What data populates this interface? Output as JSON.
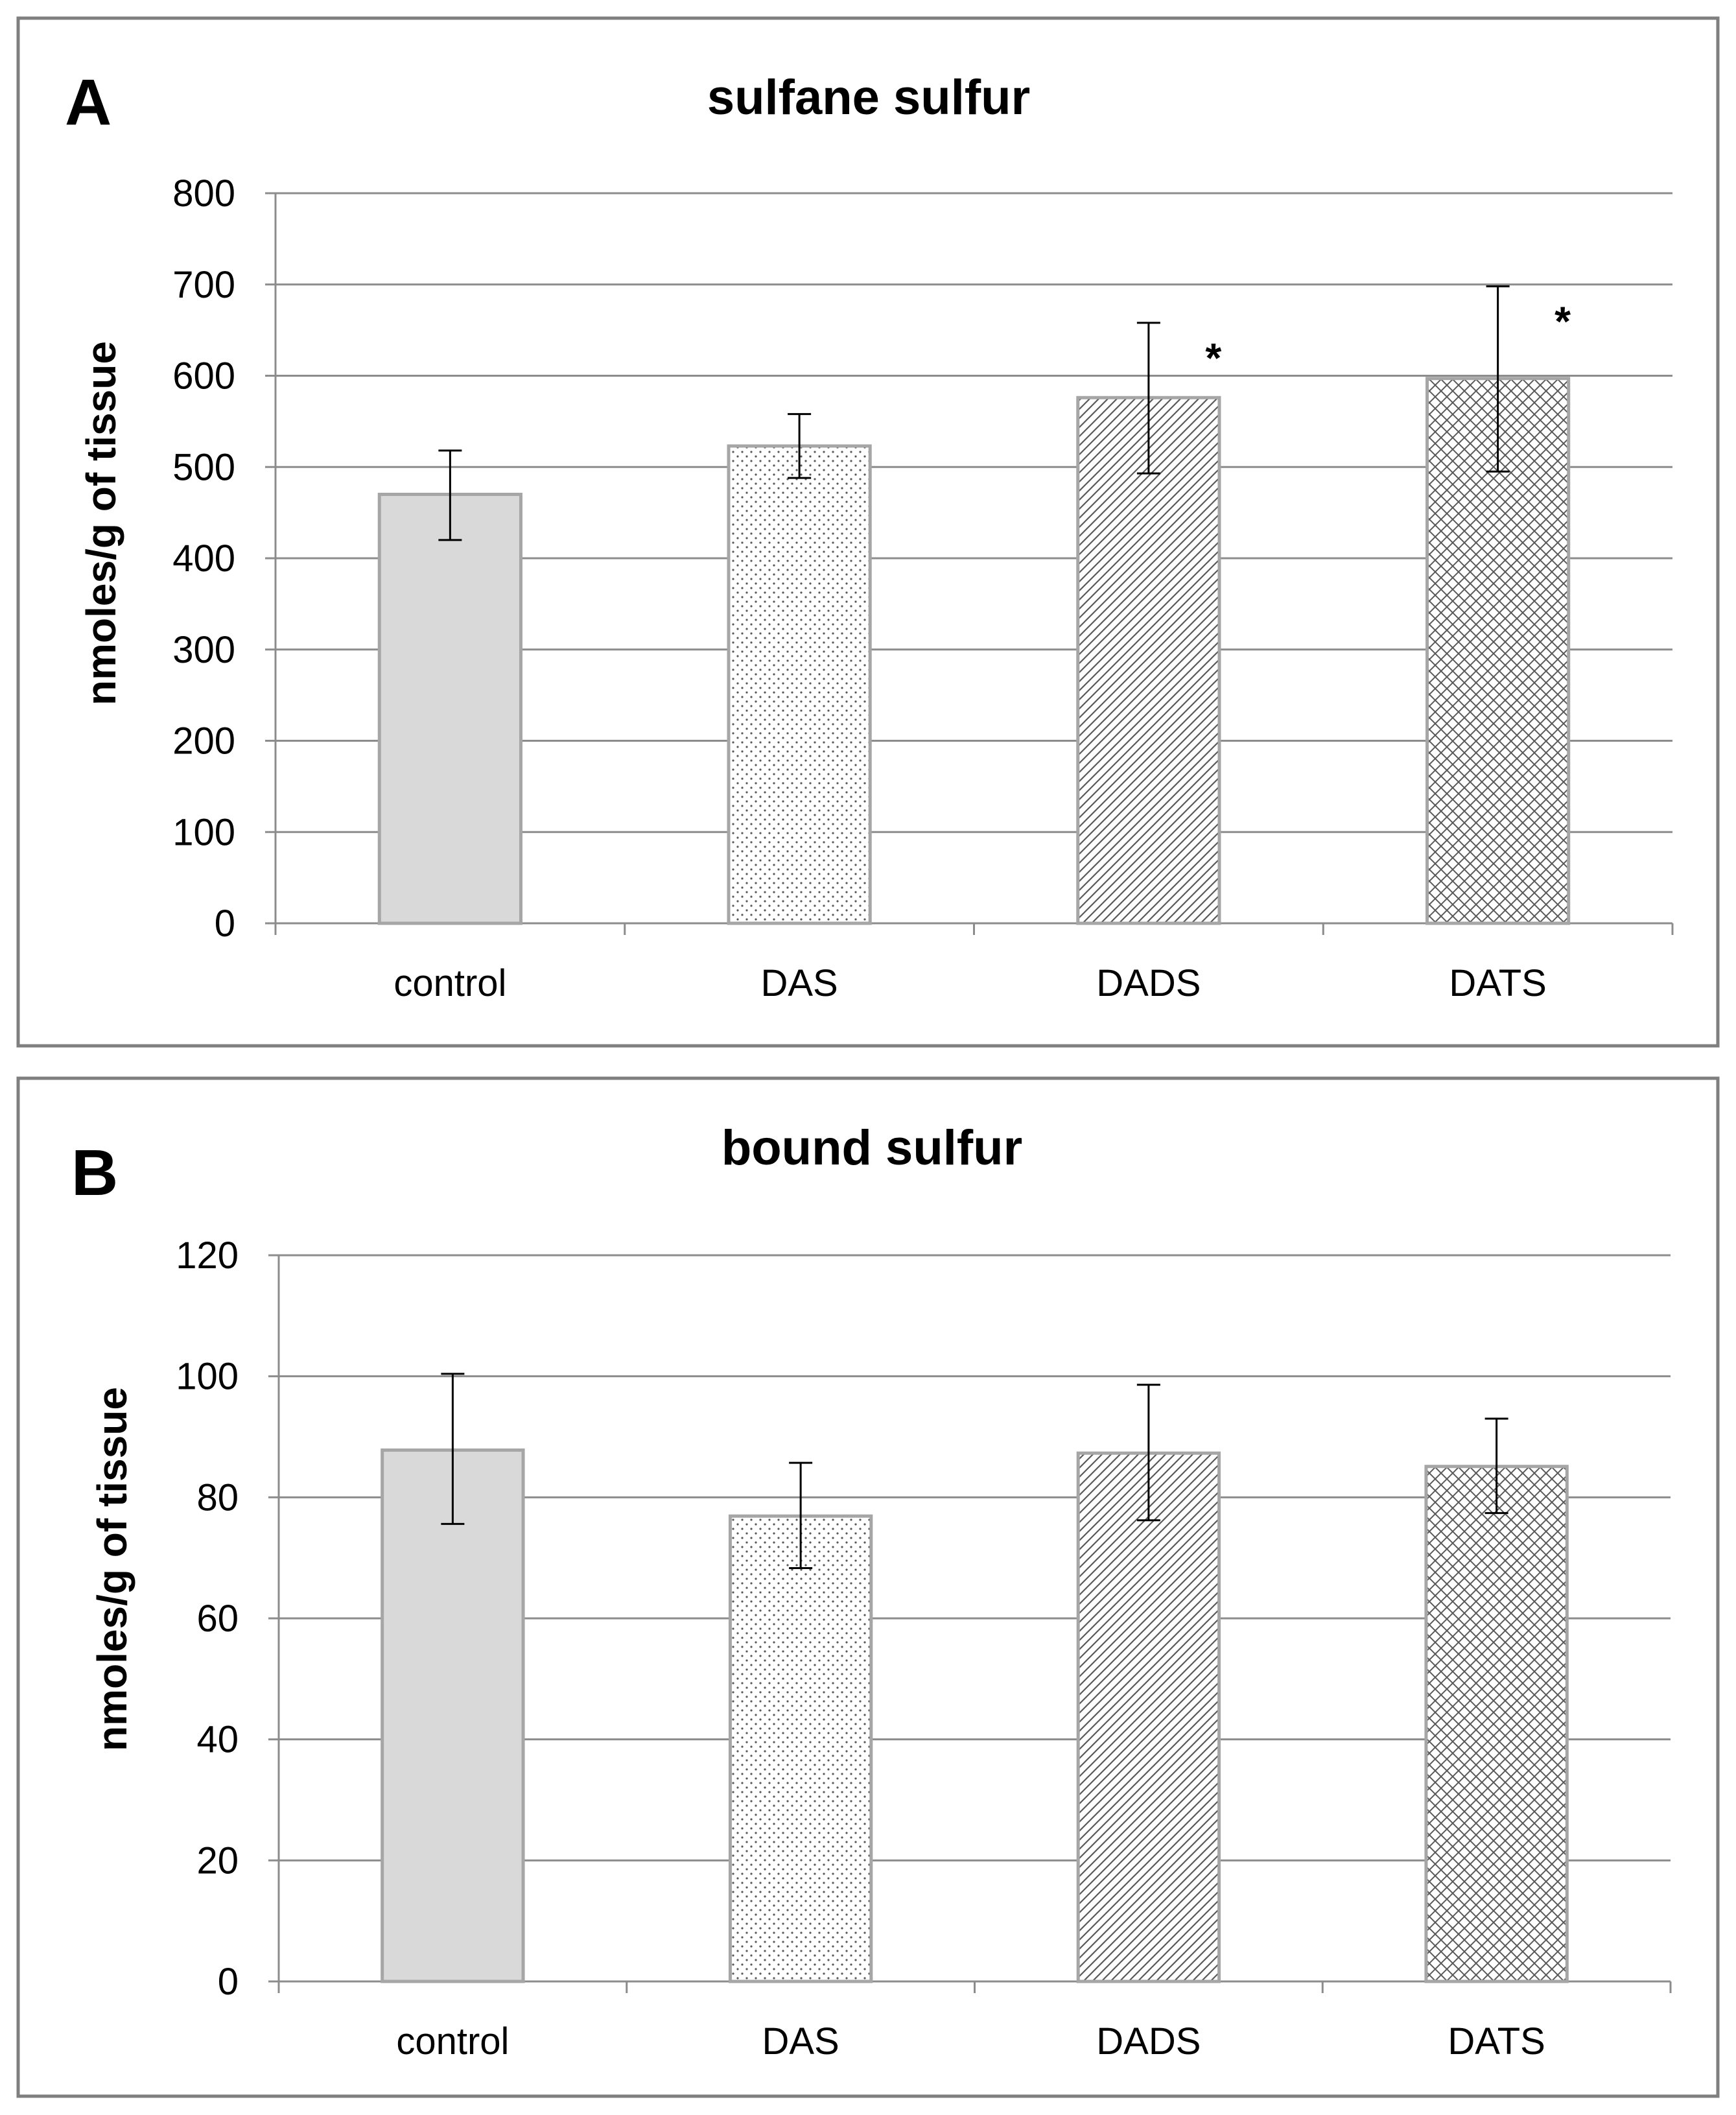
{
  "figure": {
    "panels": [
      {
        "letter": "A"
      },
      {
        "letter": "B"
      }
    ]
  },
  "colors": {
    "control_fill": "#d9d9d9",
    "bar_outline": "#a6a6a6",
    "pattern_ink": "#595959",
    "gridline": "#8c8c8c",
    "axis": "#8c8c8c",
    "error_bar": "#000000",
    "panel_border": "#7f7f7f"
  },
  "chart_data": [
    {
      "type": "bar",
      "title": "sulfane sulfur",
      "xlabel": "",
      "ylabel": "nmoles/g of tissue",
      "categories": [
        "control",
        "DAS",
        "DADS",
        "DATS"
      ],
      "values": [
        470,
        523,
        576,
        597
      ],
      "error_minus": [
        50,
        35,
        83,
        102
      ],
      "error_plus": [
        48,
        35,
        82,
        101
      ],
      "patterns": [
        "solid",
        "dots",
        "diagonal",
        "crosshatch"
      ],
      "significance": [
        "",
        "",
        "*",
        "*"
      ],
      "ylim": [
        0,
        800
      ],
      "yticks": [
        0,
        100,
        200,
        300,
        400,
        500,
        600,
        700,
        800
      ],
      "grid": true,
      "legend": "none"
    },
    {
      "type": "bar",
      "title": "bound sulfur",
      "xlabel": "",
      "ylabel": "nmoles/g of tissue",
      "categories": [
        "control",
        "DAS",
        "DADS",
        "DATS"
      ],
      "values": [
        87.8,
        76.9,
        87.3,
        85.1
      ],
      "error_minus": [
        12.2,
        8.6,
        11.1,
        7.7
      ],
      "error_plus": [
        12.6,
        8.8,
        11.3,
        7.9
      ],
      "patterns": [
        "solid",
        "dots",
        "diagonal",
        "crosshatch"
      ],
      "significance": [
        "",
        "",
        "",
        ""
      ],
      "ylim": [
        0,
        120
      ],
      "yticks": [
        0,
        20,
        40,
        60,
        80,
        100,
        120
      ],
      "grid": true,
      "legend": "none"
    }
  ]
}
